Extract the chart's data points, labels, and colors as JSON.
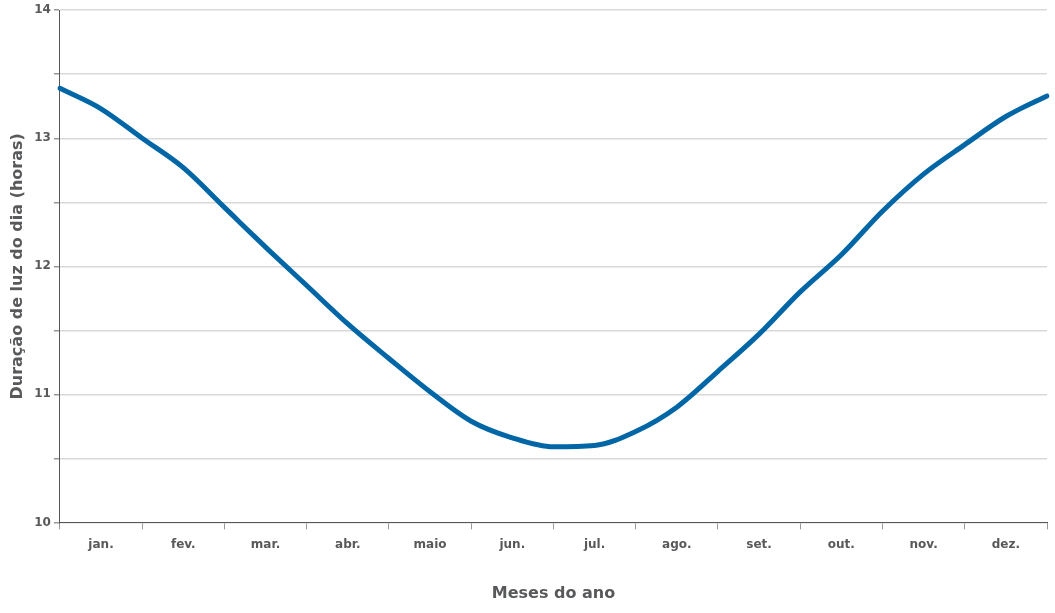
{
  "chart_data": {
    "type": "line",
    "xlabel": "Meses do ano",
    "ylabel": "Duração de luz do dia (horas)",
    "categories": [
      null,
      "jan.",
      null,
      "fev.",
      null,
      "mar.",
      null,
      "abr.",
      null,
      "maio",
      null,
      "jun.",
      null,
      "jul.",
      null,
      "ago.",
      null,
      "set.",
      null,
      "out.",
      null,
      "nov.",
      null,
      "dez.",
      null
    ],
    "series": [
      {
        "color": "#0066a6",
        "values": [
          13.39,
          13.23,
          13.0,
          12.77,
          12.46,
          12.15,
          11.85,
          11.55,
          11.28,
          11.02,
          10.79,
          10.66,
          10.59,
          10.6,
          10.71,
          10.9,
          11.18,
          11.47,
          11.8,
          12.09,
          12.43,
          12.72,
          12.95,
          13.17,
          13.33
        ]
      }
    ],
    "ylim": [
      10,
      14
    ],
    "yticks": [
      10,
      {
        "value": 10.5,
        "label": null
      },
      11,
      {
        "value": 11.5,
        "label": null
      },
      12,
      {
        "value": 12.5,
        "label": null
      },
      13,
      {
        "value": 13.5,
        "label": null
      },
      14
    ],
    "grid": "y",
    "marker": "none",
    "line_style": "solid",
    "legend": false
  }
}
